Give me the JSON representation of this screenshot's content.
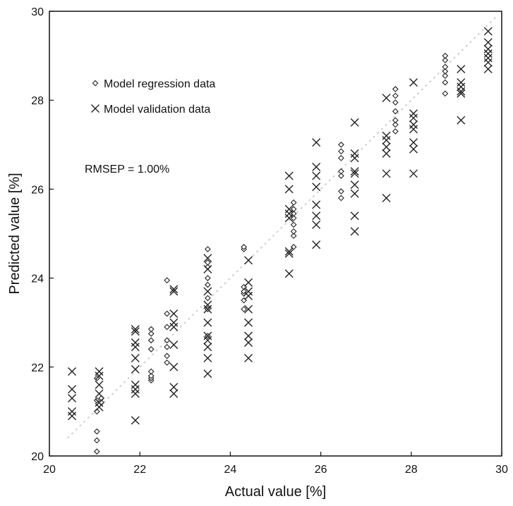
{
  "chart_data": {
    "type": "scatter",
    "xlabel": "Actual value [%]",
    "ylabel": "Predicted value [%]",
    "xlim": [
      20,
      30
    ],
    "ylim": [
      20,
      30
    ],
    "xticks": [
      "20",
      "22",
      "24",
      "26",
      "28",
      "30"
    ],
    "yticks": [
      "20",
      "22",
      "24",
      "26",
      "28",
      "30"
    ],
    "grid": false,
    "legend_position": "top-left",
    "annotation": "RMSEP = 1.00%",
    "reference_line": {
      "x": [
        20.4,
        29.9
      ],
      "y": [
        20.4,
        29.9
      ],
      "style": "faint-dotted",
      "color": "#d0d0d0"
    },
    "series": [
      {
        "name": "Model regression data",
        "marker": "diamond",
        "points": [
          [
            21.05,
            20.1
          ],
          [
            21.05,
            20.35
          ],
          [
            21.05,
            20.55
          ],
          [
            21.05,
            21.0
          ],
          [
            21.05,
            21.25
          ],
          [
            21.05,
            21.75
          ],
          [
            21.15,
            21.2
          ],
          [
            21.15,
            21.3
          ],
          [
            22.25,
            21.7
          ],
          [
            22.25,
            21.75
          ],
          [
            22.25,
            21.8
          ],
          [
            22.25,
            21.9
          ],
          [
            22.25,
            22.4
          ],
          [
            22.25,
            22.6
          ],
          [
            22.25,
            22.75
          ],
          [
            22.25,
            22.85
          ],
          [
            22.6,
            22.1
          ],
          [
            22.6,
            22.25
          ],
          [
            22.6,
            22.45
          ],
          [
            22.6,
            22.6
          ],
          [
            22.6,
            22.9
          ],
          [
            22.6,
            23.2
          ],
          [
            22.6,
            23.95
          ],
          [
            23.5,
            22.7
          ],
          [
            23.5,
            23.3
          ],
          [
            23.5,
            23.55
          ],
          [
            23.5,
            23.85
          ],
          [
            23.5,
            24.0
          ],
          [
            23.5,
            24.25
          ],
          [
            23.5,
            24.35
          ],
          [
            23.5,
            24.65
          ],
          [
            24.3,
            23.3
          ],
          [
            24.3,
            23.5
          ],
          [
            24.3,
            23.65
          ],
          [
            24.3,
            23.7
          ],
          [
            24.3,
            23.8
          ],
          [
            24.3,
            24.65
          ],
          [
            24.3,
            24.7
          ],
          [
            25.4,
            24.7
          ],
          [
            25.4,
            24.95
          ],
          [
            25.4,
            25.05
          ],
          [
            25.4,
            25.2
          ],
          [
            25.4,
            25.35
          ],
          [
            25.4,
            25.45
          ],
          [
            25.4,
            25.55
          ],
          [
            25.4,
            25.7
          ],
          [
            26.45,
            25.8
          ],
          [
            26.45,
            25.95
          ],
          [
            26.45,
            26.3
          ],
          [
            26.45,
            26.4
          ],
          [
            26.45,
            26.7
          ],
          [
            26.45,
            26.85
          ],
          [
            26.45,
            27.0
          ],
          [
            27.65,
            27.3
          ],
          [
            27.65,
            27.45
          ],
          [
            27.65,
            27.55
          ],
          [
            27.65,
            27.75
          ],
          [
            27.65,
            27.95
          ],
          [
            27.65,
            28.1
          ],
          [
            27.65,
            28.25
          ],
          [
            28.75,
            28.15
          ],
          [
            28.75,
            28.4
          ],
          [
            28.75,
            28.55
          ],
          [
            28.75,
            28.65
          ],
          [
            28.75,
            28.75
          ],
          [
            28.75,
            28.9
          ],
          [
            28.75,
            29.0
          ]
        ]
      },
      {
        "name": "Model validation data",
        "marker": "x",
        "points": [
          [
            20.5,
            20.9
          ],
          [
            20.5,
            21.0
          ],
          [
            20.5,
            21.3
          ],
          [
            20.5,
            21.5
          ],
          [
            20.5,
            21.9
          ],
          [
            21.1,
            21.1
          ],
          [
            21.1,
            21.2
          ],
          [
            21.1,
            21.4
          ],
          [
            21.1,
            21.6
          ],
          [
            21.1,
            21.8
          ],
          [
            21.1,
            21.9
          ],
          [
            21.9,
            20.8
          ],
          [
            21.9,
            21.4
          ],
          [
            21.9,
            21.5
          ],
          [
            21.9,
            21.6
          ],
          [
            21.9,
            21.95
          ],
          [
            21.9,
            22.2
          ],
          [
            21.9,
            22.45
          ],
          [
            21.9,
            22.55
          ],
          [
            21.9,
            22.8
          ],
          [
            21.9,
            22.85
          ],
          [
            22.75,
            21.4
          ],
          [
            22.75,
            21.55
          ],
          [
            22.75,
            22.0
          ],
          [
            22.75,
            22.5
          ],
          [
            22.75,
            22.9
          ],
          [
            22.75,
            23.0
          ],
          [
            22.75,
            23.2
          ],
          [
            22.75,
            23.7
          ],
          [
            22.75,
            23.75
          ],
          [
            23.5,
            21.85
          ],
          [
            23.5,
            22.2
          ],
          [
            23.5,
            22.45
          ],
          [
            23.5,
            22.6
          ],
          [
            23.5,
            22.7
          ],
          [
            23.5,
            23.0
          ],
          [
            23.5,
            23.3
          ],
          [
            23.5,
            23.4
          ],
          [
            23.5,
            23.7
          ],
          [
            23.5,
            24.2
          ],
          [
            23.5,
            24.45
          ],
          [
            24.4,
            22.2
          ],
          [
            24.4,
            22.55
          ],
          [
            24.4,
            22.7
          ],
          [
            24.4,
            23.0
          ],
          [
            24.4,
            23.3
          ],
          [
            24.4,
            23.6
          ],
          [
            24.4,
            23.7
          ],
          [
            24.4,
            23.9
          ],
          [
            24.4,
            24.4
          ],
          [
            25.3,
            24.1
          ],
          [
            25.3,
            24.55
          ],
          [
            25.3,
            24.6
          ],
          [
            25.3,
            25.35
          ],
          [
            25.3,
            25.45
          ],
          [
            25.3,
            25.55
          ],
          [
            25.3,
            26.0
          ],
          [
            25.3,
            26.3
          ],
          [
            25.9,
            24.75
          ],
          [
            25.9,
            25.2
          ],
          [
            25.9,
            25.4
          ],
          [
            25.9,
            25.65
          ],
          [
            25.9,
            26.05
          ],
          [
            25.9,
            26.3
          ],
          [
            25.9,
            26.5
          ],
          [
            25.9,
            27.05
          ],
          [
            26.75,
            25.05
          ],
          [
            26.75,
            25.4
          ],
          [
            26.75,
            25.9
          ],
          [
            26.75,
            26.1
          ],
          [
            26.75,
            26.35
          ],
          [
            26.75,
            26.4
          ],
          [
            26.75,
            26.7
          ],
          [
            26.75,
            26.8
          ],
          [
            26.75,
            27.5
          ],
          [
            27.45,
            25.8
          ],
          [
            27.45,
            26.35
          ],
          [
            27.45,
            26.8
          ],
          [
            27.45,
            26.95
          ],
          [
            27.45,
            27.1
          ],
          [
            27.45,
            27.2
          ],
          [
            27.45,
            28.05
          ],
          [
            28.05,
            26.35
          ],
          [
            28.05,
            26.9
          ],
          [
            28.05,
            27.05
          ],
          [
            28.05,
            27.35
          ],
          [
            28.05,
            27.45
          ],
          [
            28.05,
            27.6
          ],
          [
            28.05,
            27.7
          ],
          [
            28.05,
            28.4
          ],
          [
            29.1,
            27.55
          ],
          [
            29.1,
            28.15
          ],
          [
            29.1,
            28.2
          ],
          [
            29.1,
            28.3
          ],
          [
            29.1,
            28.4
          ],
          [
            29.1,
            28.7
          ],
          [
            29.7,
            28.7
          ],
          [
            29.7,
            28.85
          ],
          [
            29.7,
            28.95
          ],
          [
            29.7,
            29.05
          ],
          [
            29.7,
            29.15
          ],
          [
            29.7,
            29.3
          ],
          [
            29.7,
            29.55
          ]
        ]
      }
    ]
  }
}
